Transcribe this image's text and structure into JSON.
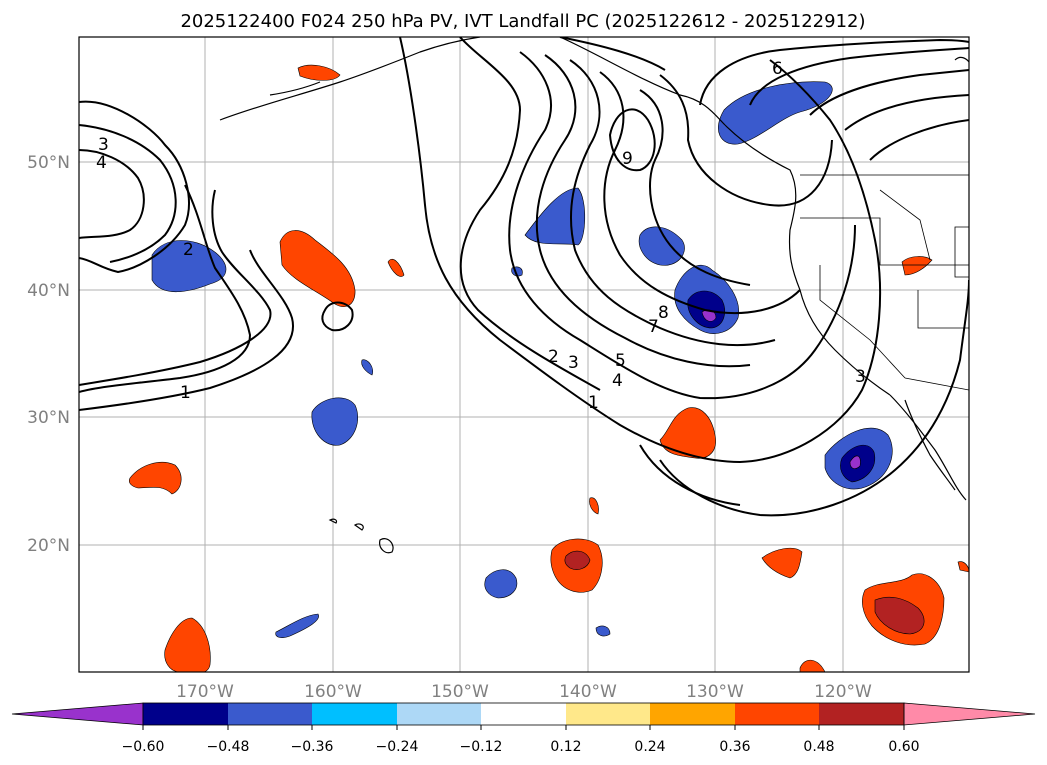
{
  "title": "2025122400 F024 250 hPa PV, IVT Landfall PC (2025122612 - 2025122912)",
  "lon_ticks": [
    "170°W",
    "160°W",
    "150°W",
    "140°W",
    "130°W",
    "120°W"
  ],
  "lat_ticks": [
    "50°N",
    "40°N",
    "30°N",
    "20°N"
  ],
  "colorbar": {
    "colors": [
      "#9932cc",
      "#00008b",
      "#3a5acd",
      "#00bfff",
      "#add8f6",
      "#ffffff",
      "#ffe88a",
      "#ffa500",
      "#ff4500",
      "#b22222",
      "#ff8aa8"
    ],
    "tick_labels": [
      "−0.60",
      "−0.48",
      "−0.36",
      "−0.24",
      "−0.12",
      "0.12",
      "0.24",
      "0.36",
      "0.48",
      "0.60"
    ]
  },
  "contour_labels": {
    "west_3": "3",
    "west_4": "4",
    "west_2": "2",
    "west_1": "1",
    "c_2": "2",
    "c_3": "3",
    "c_5": "5",
    "c_4": "4",
    "c_1": "1",
    "c_7": "7",
    "c_8": "8",
    "c_9": "9",
    "c_6": "6",
    "c_3e": "3"
  }
}
